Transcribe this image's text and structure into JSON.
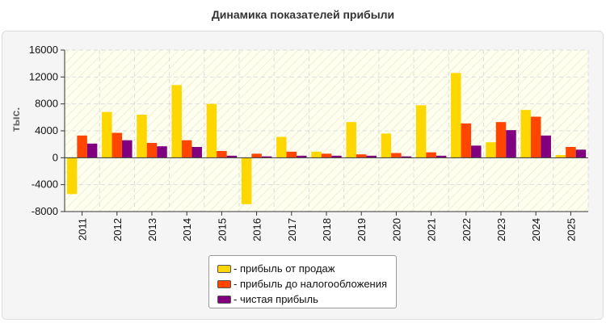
{
  "chart_data": {
    "type": "bar",
    "title": "Динамика показателей прибыли",
    "ylabel": "тыс.",
    "xlabel": "",
    "ylim": [
      -8000,
      16000
    ],
    "yticks": [
      16000,
      12000,
      8000,
      4000,
      0,
      -4000,
      -8000
    ],
    "categories": [
      "2011",
      "2012",
      "2013",
      "2014",
      "2015",
      "2016",
      "2017",
      "2018",
      "2019",
      "2020",
      "2021",
      "2022",
      "2023",
      "2024",
      "2025"
    ],
    "series": [
      {
        "name": "- прибыль от продаж",
        "color": "#ffd700",
        "values": [
          -5400,
          6800,
          6400,
          10800,
          8000,
          -6900,
          3100,
          900,
          5300,
          3600,
          7800,
          12600,
          2300,
          7100,
          400
        ]
      },
      {
        "name": "- прибыль до налогообложения",
        "color": "#ff4500",
        "values": [
          3300,
          3700,
          2200,
          2600,
          1000,
          600,
          900,
          600,
          500,
          700,
          800,
          5100,
          5300,
          6100,
          1600
        ]
      },
      {
        "name": "- чистая прибыль",
        "color": "#800080",
        "values": [
          2100,
          2600,
          1700,
          1600,
          300,
          200,
          300,
          300,
          300,
          200,
          300,
          1800,
          4100,
          3300,
          1200
        ]
      }
    ],
    "grid": true,
    "legend": "bottom-center"
  }
}
